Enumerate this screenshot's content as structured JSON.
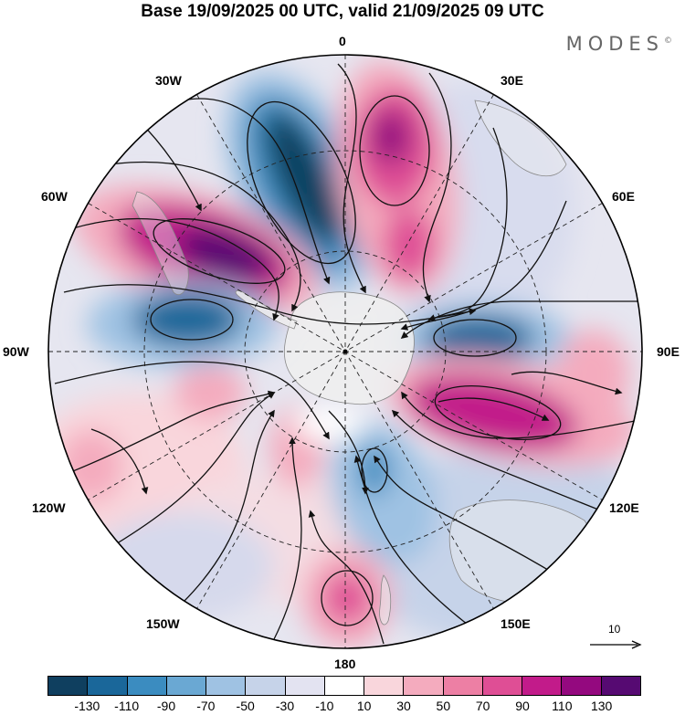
{
  "title": "Base 19/09/2025 00 UTC, valid 21/09/2025 09 UTC",
  "brand": "MODES",
  "brand_mark": "©",
  "longitude_labels": {
    "top": "0",
    "e30": "30E",
    "e60": "60E",
    "e90": "90E",
    "e120": "120E",
    "e150": "150E",
    "bottom": "180",
    "w150": "150W",
    "w120": "120W",
    "w90": "90W",
    "w60": "60W",
    "w30": "30W"
  },
  "reference_vector": {
    "label": "10"
  },
  "colorbar": {
    "colors": [
      "#0f3f5f",
      "#1a679a",
      "#3b8cc0",
      "#6aa8d3",
      "#9fc2e3",
      "#c6d3e9",
      "#e3e3f1",
      "#ffffff",
      "#f9d6dc",
      "#f4abbe",
      "#ed7fa4",
      "#df4e95",
      "#c21b8a",
      "#94097f",
      "#560a72"
    ],
    "tick_labels": [
      "-130",
      "-110",
      "-90",
      "-70",
      "-50",
      "-30",
      "-10",
      "10",
      "30",
      "50",
      "70",
      "90",
      "110",
      "130"
    ]
  },
  "map_data": {
    "type": "polar stereographic (south pole)",
    "field_colors": {
      "background": "#e6e6f0",
      "land": "#eeeeee"
    },
    "anomaly_centers": [
      {
        "name": "negative-30W",
        "value": -130
      },
      {
        "name": "positive-15E",
        "value": 110
      },
      {
        "name": "positive-60W",
        "value": 130
      },
      {
        "name": "negative-85W",
        "value": -90
      },
      {
        "name": "negative-80E",
        "value": -90
      },
      {
        "name": "positive-105E",
        "value": 110
      },
      {
        "name": "negative-150E",
        "value": -50
      },
      {
        "name": "positive-170W",
        "value": 70
      },
      {
        "name": "positive-135W",
        "value": 50
      }
    ]
  }
}
